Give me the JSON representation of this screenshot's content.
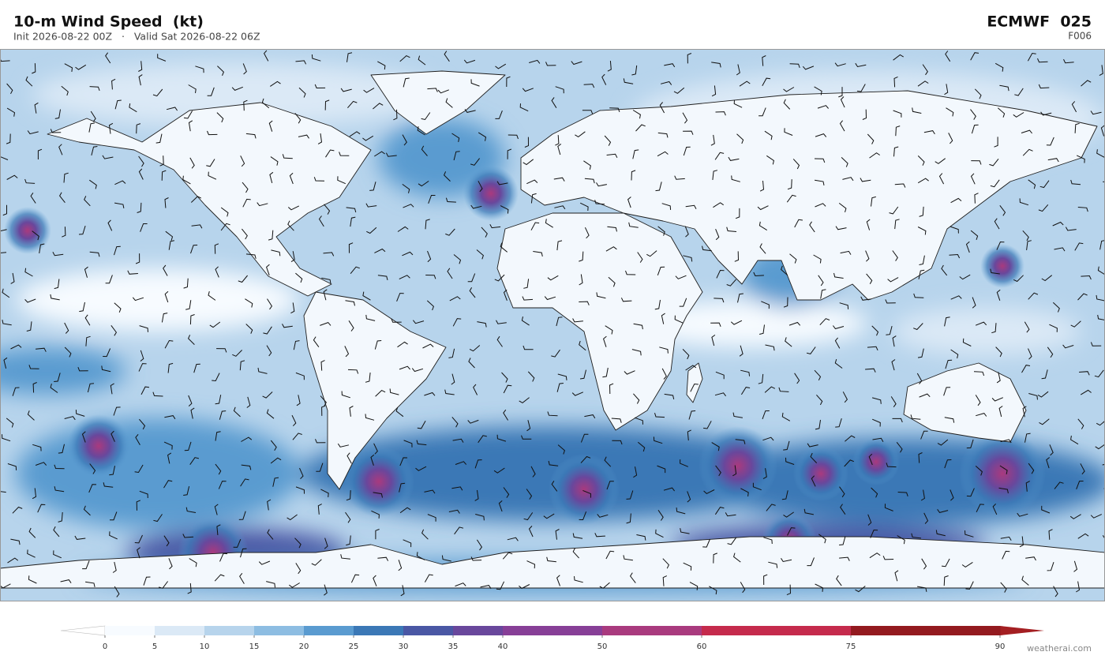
{
  "header": {
    "title": "10-m Wind Speed  (kt)",
    "subtitle": "Init 2026-08-22 00Z   ·   Valid Sat 2026-08-22 06Z",
    "model": "ECMWF  025",
    "forecast": "F006"
  },
  "colorbar": {
    "ticks": [
      0,
      5,
      10,
      15,
      20,
      25,
      30,
      35,
      40,
      50,
      60,
      75,
      90
    ],
    "colors": [
      "#f7fbff",
      "#dbe9f6",
      "#b7d4ec",
      "#8dbde2",
      "#5a9bd0",
      "#3b78b6",
      "#4a57a4",
      "#69479c",
      "#873f97",
      "#a93a7e",
      "#c52a4c",
      "#931a1f"
    ],
    "under_color": "#ffffff",
    "over_color": "#a41f22"
  },
  "credit": "weatherai.com"
}
